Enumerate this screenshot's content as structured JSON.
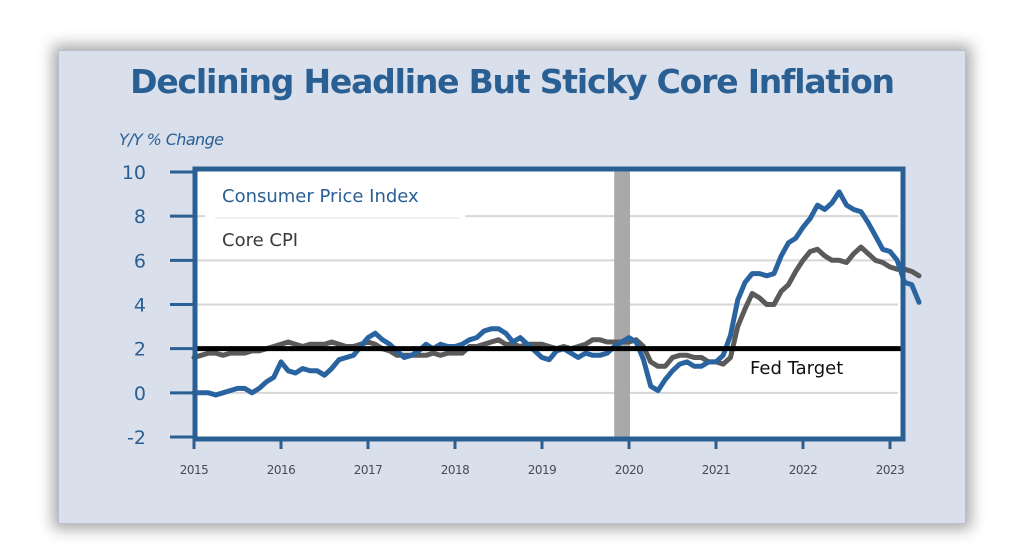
{
  "chart_data": {
    "type": "line",
    "title": "Declining Headline But Sticky Core Inflation",
    "ylabel": "Y/Y % Change",
    "xlabel": "",
    "xlim": [
      2015,
      2023
    ],
    "ylim": [
      -2,
      10
    ],
    "x_ticks": [
      "2015",
      "2016",
      "2017",
      "2018",
      "2019",
      "2020",
      "2021",
      "2022",
      "2023"
    ],
    "y_ticks": [
      "10",
      "8",
      "6",
      "4",
      "2",
      "0",
      "-2"
    ],
    "y_tick_values": [
      10,
      8,
      6,
      4,
      2,
      0,
      -2
    ],
    "grid": "horizontal",
    "legend": {
      "placement": "top-left",
      "entries": [
        "Consumer Price Index",
        "Core CPI"
      ]
    },
    "colors": {
      "cpi": "#2a64a0",
      "core": "#5a5a5a",
      "target": "#000000",
      "recession": "#a9a9a9",
      "axis": "#2a5f93"
    },
    "recession": {
      "start": 2019.83,
      "end": 2020.0
    },
    "reference_line": {
      "value": 2,
      "label": "Fed Target"
    },
    "series": [
      {
        "name": "Consumer Price Index",
        "x_start": 2015.0,
        "step": 0.08333,
        "values": [
          0.0,
          0.0,
          0.0,
          -0.1,
          0.0,
          0.1,
          0.2,
          0.2,
          0.0,
          0.2,
          0.5,
          0.7,
          1.4,
          1.0,
          0.9,
          1.1,
          1.0,
          1.0,
          0.8,
          1.1,
          1.5,
          1.6,
          1.7,
          2.1,
          2.5,
          2.7,
          2.4,
          2.2,
          1.9,
          1.6,
          1.7,
          1.9,
          2.2,
          2.0,
          2.2,
          2.1,
          2.1,
          2.2,
          2.4,
          2.5,
          2.8,
          2.9,
          2.9,
          2.7,
          2.3,
          2.5,
          2.2,
          1.9,
          1.6,
          1.5,
          1.9,
          2.0,
          1.8,
          1.6,
          1.8,
          1.7,
          1.7,
          1.8,
          2.1,
          2.3,
          2.5,
          2.3,
          1.5,
          0.3,
          0.1,
          0.6,
          1.0,
          1.3,
          1.4,
          1.2,
          1.2,
          1.4,
          1.4,
          1.7,
          2.6,
          4.2,
          5.0,
          5.4,
          5.4,
          5.3,
          5.4,
          6.2,
          6.8,
          7.0,
          7.5,
          7.9,
          8.5,
          8.3,
          8.6,
          9.1,
          8.5,
          8.3,
          8.2,
          7.7,
          7.1,
          6.5,
          6.4,
          6.0,
          5.0,
          4.9,
          4.1
        ],
        "x_end_label_year": 2022.83
      },
      {
        "name": "Core CPI",
        "x_start": 2015.0,
        "step": 0.08333,
        "values": [
          1.6,
          1.7,
          1.8,
          1.8,
          1.7,
          1.8,
          1.8,
          1.8,
          1.9,
          1.9,
          2.0,
          2.1,
          2.2,
          2.3,
          2.2,
          2.1,
          2.2,
          2.2,
          2.2,
          2.3,
          2.2,
          2.1,
          2.1,
          2.2,
          2.3,
          2.2,
          2.0,
          1.9,
          1.7,
          1.7,
          1.7,
          1.7,
          1.7,
          1.8,
          1.7,
          1.8,
          1.8,
          1.8,
          2.1,
          2.1,
          2.2,
          2.3,
          2.4,
          2.2,
          2.2,
          2.1,
          2.2,
          2.2,
          2.2,
          2.1,
          2.0,
          2.1,
          2.0,
          2.1,
          2.2,
          2.4,
          2.4,
          2.3,
          2.3,
          2.3,
          2.3,
          2.4,
          2.1,
          1.4,
          1.2,
          1.2,
          1.6,
          1.7,
          1.7,
          1.6,
          1.6,
          1.4,
          1.4,
          1.3,
          1.6,
          3.0,
          3.8,
          4.5,
          4.3,
          4.0,
          4.0,
          4.6,
          4.9,
          5.5,
          6.0,
          6.4,
          6.5,
          6.2,
          6.0,
          6.0,
          5.9,
          6.3,
          6.6,
          6.3,
          6.0,
          5.9,
          5.7,
          5.6,
          5.6,
          5.5,
          5.3
        ],
        "x_end_label_year": 2022.83
      }
    ]
  }
}
